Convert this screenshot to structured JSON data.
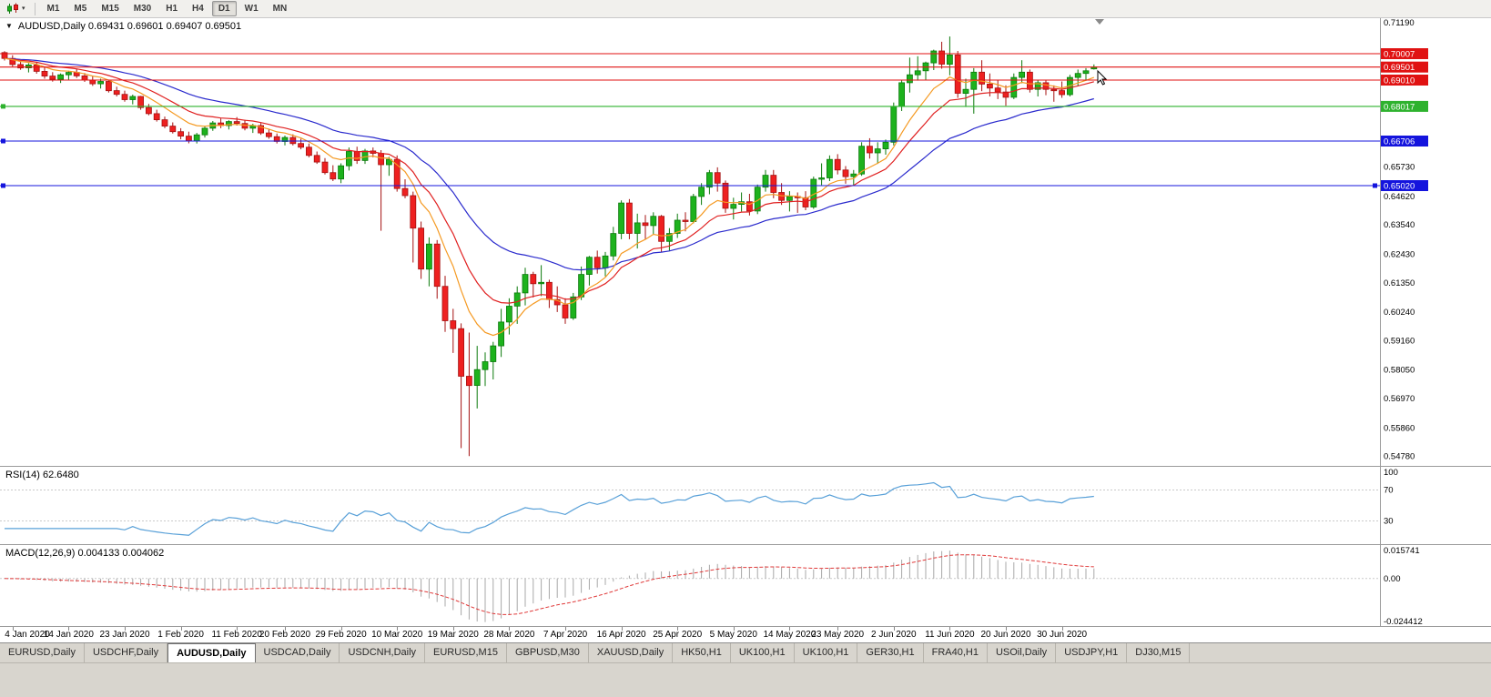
{
  "icons": {
    "collapse": "▼",
    "dropdown": "▾"
  },
  "toolbar": {
    "timeframes": [
      "M1",
      "M5",
      "M15",
      "M30",
      "H1",
      "H4",
      "D1",
      "W1",
      "MN"
    ],
    "active_timeframe": "D1"
  },
  "chart_data": {
    "type": "candlestick",
    "symbol": "AUDUSD",
    "period": "Daily",
    "title_line": "AUDUSD,Daily 0.69431 0.69601 0.69407 0.69501",
    "ohlc_current": {
      "open": "0.69431",
      "high": "0.69601",
      "low": "0.69407",
      "close": "0.69501"
    },
    "price_axis": {
      "range": [
        0.5442,
        0.7135
      ],
      "visible_labels": [
        "0.71190",
        "0.65730",
        "0.64620",
        "0.63540",
        "0.62430",
        "0.61350",
        "0.60240",
        "0.59160",
        "0.58050",
        "0.56970",
        "0.55860",
        "0.54780"
      ]
    },
    "hlines": [
      {
        "price": 0.70007,
        "label": "0.70007",
        "color": "#e01212",
        "handles": []
      },
      {
        "price": 0.69501,
        "label": "0.69501",
        "color": "#e01212",
        "handles": []
      },
      {
        "price": 0.6901,
        "label": "0.69010",
        "color": "#e01212",
        "handles": []
      },
      {
        "price": 0.68017,
        "label": "0.68017",
        "color": "#2eb22e",
        "handles": [
          "left"
        ]
      },
      {
        "price": 0.66706,
        "label": "0.66706",
        "color": "#1414dd",
        "handles": [
          "left"
        ]
      },
      {
        "price": 0.6502,
        "label": "0.65020",
        "color": "#1414dd",
        "handles": [
          "left",
          "right"
        ]
      }
    ],
    "moving_averages": [
      {
        "name": "ma-slow-blue",
        "color": "#2b2bcd",
        "alpha": 0.065
      },
      {
        "name": "ma-mid-red",
        "color": "#e02121",
        "alpha": 0.13
      },
      {
        "name": "ma-fast-orange",
        "color": "#f59a23",
        "alpha": 0.22
      }
    ],
    "colors": {
      "background": "#ffffff",
      "bull": "#1db21d",
      "bull_border": "#0b7a0b",
      "bear": "#ee2020",
      "bear_border": "#a51111",
      "axis_text": "#000000"
    },
    "date_labels": [
      [
        "4 Jan 2020",
        1
      ],
      [
        "14 Jan 2020",
        8
      ],
      [
        "23 Jan 2020",
        15
      ],
      [
        "1 Feb 2020",
        22
      ],
      [
        "11 Feb 2020",
        29
      ],
      [
        "20 Feb 2020",
        35
      ],
      [
        "29 Feb 2020",
        42
      ],
      [
        "10 Mar 2020",
        49
      ],
      [
        "19 Mar 2020",
        56
      ],
      [
        "28 Mar 2020",
        63
      ],
      [
        "7 Apr 2020",
        70
      ],
      [
        "16 Apr 2020",
        77
      ],
      [
        "25 Apr 2020",
        84
      ],
      [
        "5 May 2020",
        91
      ],
      [
        "14 May 2020",
        98
      ],
      [
        "23 May 2020",
        104
      ],
      [
        "2 Jun 2020",
        111
      ],
      [
        "11 Jun 2020",
        118
      ],
      [
        "20 Jun 2020",
        125
      ],
      [
        "30 Jun 2020",
        132
      ]
    ],
    "candles": [
      [
        0.7005,
        0.701,
        0.6975,
        0.6983
      ],
      [
        0.6983,
        0.6995,
        0.6952,
        0.696
      ],
      [
        0.696,
        0.6974,
        0.694,
        0.6947
      ],
      [
        0.6947,
        0.6965,
        0.693,
        0.6958
      ],
      [
        0.6958,
        0.6969,
        0.6925,
        0.6934
      ],
      [
        0.6934,
        0.695,
        0.6906,
        0.6916
      ],
      [
        0.6916,
        0.6931,
        0.6895,
        0.6904
      ],
      [
        0.6904,
        0.6926,
        0.689,
        0.6921
      ],
      [
        0.6921,
        0.6936,
        0.6902,
        0.693
      ],
      [
        0.693,
        0.6944,
        0.6909,
        0.6917
      ],
      [
        0.6917,
        0.6928,
        0.6894,
        0.6901
      ],
      [
        0.6901,
        0.6916,
        0.6879,
        0.6887
      ],
      [
        0.6887,
        0.6906,
        0.6869,
        0.6896
      ],
      [
        0.6896,
        0.6901,
        0.6854,
        0.6861
      ],
      [
        0.6861,
        0.6876,
        0.6839,
        0.6847
      ],
      [
        0.6847,
        0.6861,
        0.6819,
        0.6827
      ],
      [
        0.6827,
        0.6846,
        0.6809,
        0.6839
      ],
      [
        0.6839,
        0.6841,
        0.6789,
        0.6797
      ],
      [
        0.6797,
        0.6811,
        0.6768,
        0.6774
      ],
      [
        0.6774,
        0.6789,
        0.6744,
        0.6751
      ],
      [
        0.6751,
        0.6763,
        0.6719,
        0.6727
      ],
      [
        0.6727,
        0.6741,
        0.6699,
        0.6706
      ],
      [
        0.6706,
        0.6719,
        0.6677,
        0.6689
      ],
      [
        0.6689,
        0.6706,
        0.6662,
        0.6671
      ],
      [
        0.6671,
        0.6701,
        0.6661,
        0.6694
      ],
      [
        0.6694,
        0.6726,
        0.6684,
        0.6719
      ],
      [
        0.6719,
        0.6746,
        0.6709,
        0.6739
      ],
      [
        0.6739,
        0.6756,
        0.6719,
        0.6729
      ],
      [
        0.6729,
        0.6749,
        0.6714,
        0.6744
      ],
      [
        0.6744,
        0.6761,
        0.6729,
        0.6737
      ],
      [
        0.6737,
        0.6751,
        0.6711,
        0.6719
      ],
      [
        0.6719,
        0.6736,
        0.6701,
        0.6729
      ],
      [
        0.6729,
        0.6739,
        0.6694,
        0.6701
      ],
      [
        0.6701,
        0.6716,
        0.6679,
        0.6687
      ],
      [
        0.6687,
        0.6699,
        0.6661,
        0.6669
      ],
      [
        0.6669,
        0.6691,
        0.6654,
        0.6684
      ],
      [
        0.6684,
        0.6696,
        0.6654,
        0.6661
      ],
      [
        0.6661,
        0.6679,
        0.6639,
        0.6647
      ],
      [
        0.6647,
        0.6661,
        0.6609,
        0.6616
      ],
      [
        0.6616,
        0.6631,
        0.6584,
        0.6591
      ],
      [
        0.6591,
        0.6606,
        0.6544,
        0.6551
      ],
      [
        0.6551,
        0.6579,
        0.6519,
        0.6527
      ],
      [
        0.6527,
        0.6586,
        0.6511,
        0.6577
      ],
      [
        0.6577,
        0.6646,
        0.6559,
        0.6631
      ],
      [
        0.6631,
        0.6649,
        0.6584,
        0.6597
      ],
      [
        0.6597,
        0.6641,
        0.6584,
        0.6633
      ],
      [
        0.6633,
        0.6646,
        0.6609,
        0.6624
      ],
      [
        0.6624,
        0.6636,
        0.6331,
        0.6581
      ],
      [
        0.6581,
        0.6611,
        0.6539,
        0.6601
      ],
      [
        0.6601,
        0.6616,
        0.6479,
        0.6491
      ],
      [
        0.6491,
        0.6526,
        0.6454,
        0.6464
      ],
      [
        0.6464,
        0.6479,
        0.6211,
        0.6341
      ],
      [
        0.6341,
        0.6366,
        0.6149,
        0.6186
      ],
      [
        0.6186,
        0.6306,
        0.6121,
        0.6281
      ],
      [
        0.6281,
        0.6296,
        0.6074,
        0.6121
      ],
      [
        0.6121,
        0.6161,
        0.5949,
        0.5991
      ],
      [
        0.5991,
        0.6036,
        0.5869,
        0.5961
      ],
      [
        0.5961,
        0.5981,
        0.5509,
        0.5781
      ],
      [
        0.5781,
        0.5946,
        0.5479,
        0.5746
      ],
      [
        0.5746,
        0.5896,
        0.5659,
        0.5806
      ],
      [
        0.5806,
        0.5871,
        0.5744,
        0.5836
      ],
      [
        0.5836,
        0.5911,
        0.5769,
        0.5896
      ],
      [
        0.5896,
        0.6036,
        0.5854,
        0.5986
      ],
      [
        0.5986,
        0.6076,
        0.5939,
        0.6046
      ],
      [
        0.6046,
        0.6121,
        0.5979,
        0.6096
      ],
      [
        0.6096,
        0.6191,
        0.6049,
        0.6166
      ],
      [
        0.6166,
        0.6176,
        0.6079,
        0.6131
      ],
      [
        0.6131,
        0.6201,
        0.6084,
        0.6136
      ],
      [
        0.6136,
        0.6146,
        0.6039,
        0.6071
      ],
      [
        0.6071,
        0.6121,
        0.6024,
        0.6051
      ],
      [
        0.6051,
        0.6076,
        0.5979,
        0.6001
      ],
      [
        0.6001,
        0.6096,
        0.5994,
        0.6081
      ],
      [
        0.6081,
        0.6196,
        0.6069,
        0.6166
      ],
      [
        0.6166,
        0.6236,
        0.6124,
        0.6231
      ],
      [
        0.6231,
        0.6256,
        0.6169,
        0.6191
      ],
      [
        0.6191,
        0.6251,
        0.6159,
        0.6236
      ],
      [
        0.6236,
        0.6346,
        0.6219,
        0.6321
      ],
      [
        0.6321,
        0.6446,
        0.6299,
        0.6436
      ],
      [
        0.6436,
        0.6451,
        0.6299,
        0.6321
      ],
      [
        0.6321,
        0.6396,
        0.6264,
        0.6361
      ],
      [
        0.6361,
        0.6391,
        0.6299,
        0.6351
      ],
      [
        0.6351,
        0.6401,
        0.6319,
        0.6386
      ],
      [
        0.6386,
        0.6391,
        0.6249,
        0.6291
      ],
      [
        0.6291,
        0.6341,
        0.6254,
        0.6321
      ],
      [
        0.6321,
        0.6396,
        0.6304,
        0.6371
      ],
      [
        0.6371,
        0.6401,
        0.6329,
        0.6366
      ],
      [
        0.6366,
        0.6471,
        0.6359,
        0.6461
      ],
      [
        0.6461,
        0.6511,
        0.6429,
        0.6496
      ],
      [
        0.6496,
        0.6561,
        0.6469,
        0.6551
      ],
      [
        0.6551,
        0.6571,
        0.6479,
        0.6511
      ],
      [
        0.6511,
        0.6521,
        0.6399,
        0.6416
      ],
      [
        0.6416,
        0.6456,
        0.6374,
        0.6431
      ],
      [
        0.6431,
        0.6476,
        0.6404,
        0.6441
      ],
      [
        0.6441,
        0.6471,
        0.6389,
        0.6406
      ],
      [
        0.6406,
        0.6506,
        0.6394,
        0.6496
      ],
      [
        0.6496,
        0.6561,
        0.6479,
        0.6541
      ],
      [
        0.6541,
        0.6561,
        0.6454,
        0.6476
      ],
      [
        0.6476,
        0.6511,
        0.6429,
        0.6446
      ],
      [
        0.6446,
        0.6481,
        0.6404,
        0.6461
      ],
      [
        0.6461,
        0.6476,
        0.6399,
        0.6456
      ],
      [
        0.6456,
        0.6481,
        0.6409,
        0.6421
      ],
      [
        0.6421,
        0.6536,
        0.6414,
        0.6526
      ],
      [
        0.6526,
        0.6586,
        0.6504,
        0.6531
      ],
      [
        0.6531,
        0.6616,
        0.6519,
        0.6601
      ],
      [
        0.6601,
        0.6621,
        0.6544,
        0.6561
      ],
      [
        0.6561,
        0.6576,
        0.6509,
        0.6536
      ],
      [
        0.6536,
        0.6561,
        0.6504,
        0.6546
      ],
      [
        0.6546,
        0.6666,
        0.6539,
        0.6651
      ],
      [
        0.6651,
        0.6681,
        0.6604,
        0.6626
      ],
      [
        0.6626,
        0.6666,
        0.6584,
        0.6641
      ],
      [
        0.6641,
        0.6676,
        0.6619,
        0.6666
      ],
      [
        0.6666,
        0.6816,
        0.6654,
        0.6801
      ],
      [
        0.6801,
        0.6901,
        0.6784,
        0.6891
      ],
      [
        0.6891,
        0.6986,
        0.6854,
        0.6921
      ],
      [
        0.6921,
        0.6991,
        0.6899,
        0.6936
      ],
      [
        0.6936,
        0.6971,
        0.6901,
        0.6966
      ],
      [
        0.6966,
        0.7016,
        0.6939,
        0.7011
      ],
      [
        0.7011,
        0.7046,
        0.6944,
        0.6961
      ],
      [
        0.6961,
        0.7066,
        0.6919,
        0.6996
      ],
      [
        0.6996,
        0.7011,
        0.6834,
        0.6851
      ],
      [
        0.6851,
        0.6906,
        0.6799,
        0.6866
      ],
      [
        0.6866,
        0.6946,
        0.6774,
        0.6931
      ],
      [
        0.6931,
        0.6976,
        0.6859,
        0.6886
      ],
      [
        0.6886,
        0.6926,
        0.6839,
        0.6871
      ],
      [
        0.6871,
        0.6901,
        0.6829,
        0.6856
      ],
      [
        0.6856,
        0.6881,
        0.6804,
        0.6836
      ],
      [
        0.6836,
        0.6926,
        0.6829,
        0.6911
      ],
      [
        0.6911,
        0.6976,
        0.6889,
        0.6931
      ],
      [
        0.6931,
        0.6941,
        0.6854,
        0.6866
      ],
      [
        0.6866,
        0.6901,
        0.6839,
        0.6891
      ],
      [
        0.6891,
        0.6901,
        0.6844,
        0.6866
      ],
      [
        0.6866,
        0.6881,
        0.6819,
        0.6861
      ],
      [
        0.6861,
        0.6896,
        0.6834,
        0.6846
      ],
      [
        0.6846,
        0.6921,
        0.6839,
        0.6911
      ],
      [
        0.6911,
        0.6941,
        0.6879,
        0.6926
      ],
      [
        0.6926,
        0.6946,
        0.6899,
        0.6936
      ],
      [
        0.69431,
        0.69601,
        0.69407,
        0.69501
      ]
    ],
    "indicators": {
      "rsi": {
        "label": "RSI(14) 62.6480",
        "period": 14,
        "current": "62.6480",
        "levels": [
          100,
          70,
          30
        ],
        "level_labels": [
          "100",
          "70",
          "30"
        ],
        "line_color": "#58a0d8"
      },
      "macd": {
        "label": "MACD(12,26,9) 0.004133 0.004062",
        "params": [
          12,
          26,
          9
        ],
        "current_main": "0.004133",
        "current_signal": "0.004062",
        "axis_labels": [
          "0.015741",
          "0.00",
          "-0.024412"
        ],
        "histogram_color": "#a8a8a8",
        "signal_color": "#e03a3a"
      }
    }
  },
  "tabs": {
    "items": [
      {
        "label": "EURUSD,Daily",
        "active": false
      },
      {
        "label": "USDCHF,Daily",
        "active": false
      },
      {
        "label": "AUDUSD,Daily",
        "active": true
      },
      {
        "label": "USDCAD,Daily",
        "active": false
      },
      {
        "label": "USDCNH,Daily",
        "active": false
      },
      {
        "label": "EURUSD,M15",
        "active": false
      },
      {
        "label": "GBPUSD,M30",
        "active": false
      },
      {
        "label": "XAUUSD,Daily",
        "active": false
      },
      {
        "label": "HK50,H1",
        "active": false
      },
      {
        "label": "UK100,H1",
        "active": false
      },
      {
        "label": "UK100,H1",
        "active": false
      },
      {
        "label": "GER30,H1",
        "active": false
      },
      {
        "label": "FRA40,H1",
        "active": false
      },
      {
        "label": "USOil,Daily",
        "active": false
      },
      {
        "label": "USDJPY,H1",
        "active": false
      },
      {
        "label": "DJ30,M15",
        "active": false
      }
    ]
  }
}
